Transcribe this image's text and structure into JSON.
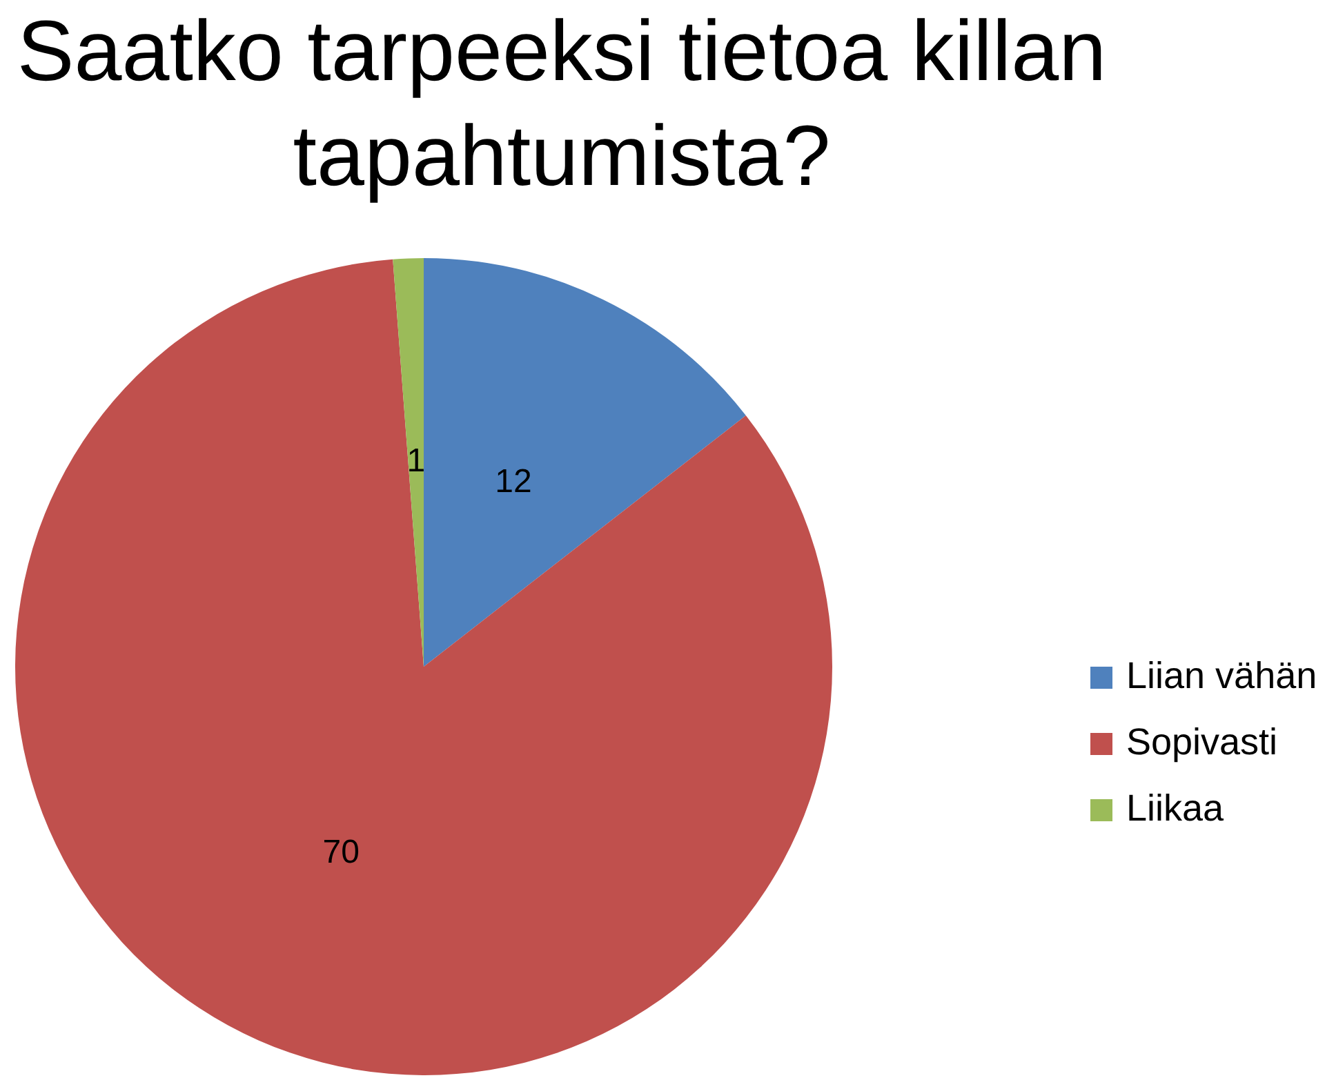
{
  "chart_data": {
    "type": "pie",
    "title": "Saatko tarpeeksi tietoa killan tapahtumista?",
    "categories": [
      "Liian vähän",
      "Sopivasti",
      "Liikaa"
    ],
    "values": [
      12,
      70,
      1
    ],
    "colors": [
      "#4f81bd",
      "#c0504d",
      "#9bbb59"
    ],
    "data_labels": true,
    "legend": "right"
  }
}
